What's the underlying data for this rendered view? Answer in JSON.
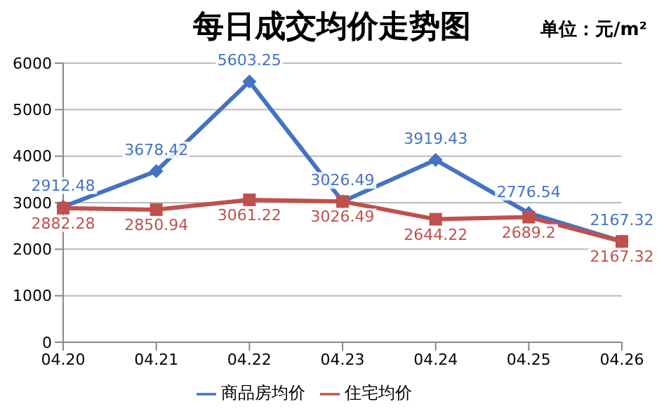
{
  "chart_data": {
    "type": "line",
    "title": "每日成交均价走势图",
    "annotations": [
      "单位：元/m²"
    ],
    "categories": [
      "04.20",
      "04.21",
      "04.22",
      "04.23",
      "04.24",
      "04.25",
      "04.26"
    ],
    "series": [
      {
        "name": "商品房均价",
        "color": "#4472c4",
        "marker": "diamond",
        "values": [
          2912.48,
          3678.42,
          5603.25,
          3026.49,
          3919.43,
          2776.54,
          2167.32
        ]
      },
      {
        "name": "住宅均价",
        "color": "#c0504d",
        "marker": "square",
        "values": [
          2882.28,
          2850.94,
          3061.22,
          3026.49,
          2644.22,
          2689.2,
          2167.32
        ]
      }
    ],
    "ylim": [
      0,
      6000
    ],
    "yticks": [
      0,
      1000,
      2000,
      3000,
      4000,
      5000,
      6000
    ],
    "grid": "y",
    "legend": "bottom",
    "data_labels": true,
    "line_style": "solid"
  }
}
